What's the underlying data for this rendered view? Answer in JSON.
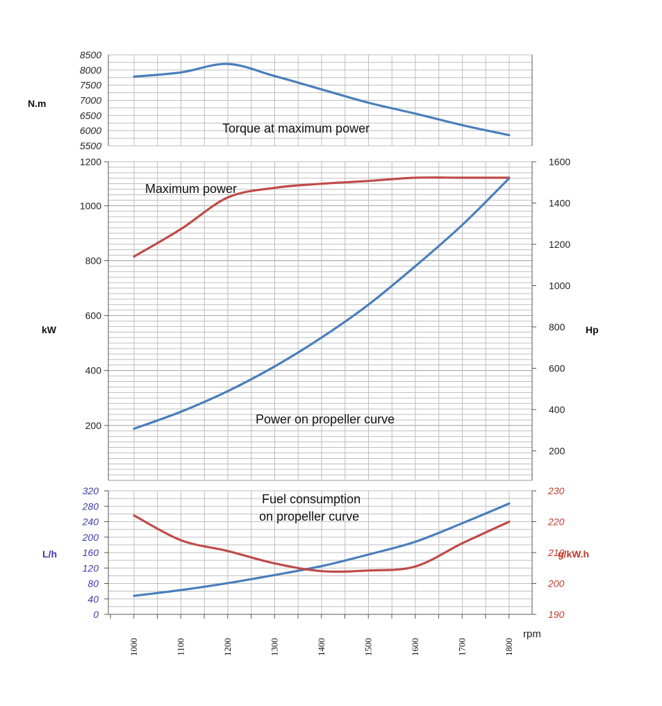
{
  "colors": {
    "blue": "#4a7ebb",
    "red": "#be4b48",
    "fuel_axis": "#3b3ba8",
    "sfc_axis": "#c0392b",
    "grid": "#bdbdbd"
  },
  "chart_data": [
    {
      "type": "line",
      "title": "",
      "x": [
        1000,
        1100,
        1200,
        1300,
        1400,
        1500,
        1600,
        1700,
        1800
      ],
      "ylabel": "N.m",
      "ylim": [
        5500,
        8500
      ],
      "yticks": [
        "8500",
        "8000",
        "7500",
        "7000",
        "6500",
        "6000",
        "5500"
      ],
      "annotation": "Torque at maximum power",
      "series": [
        {
          "values": [
            7780,
            7920,
            8200,
            7800,
            7360,
            6920,
            6560,
            6180,
            5850
          ]
        }
      ]
    },
    {
      "type": "line",
      "x": [
        1000,
        1100,
        1200,
        1300,
        1400,
        1500,
        1600,
        1700,
        1800
      ],
      "ylabel": "kW",
      "ylim": [
        0,
        1200
      ],
      "yticks": [
        "1200",
        "1000",
        "800",
        "600",
        "400",
        "200"
      ],
      "y2label": "Hp",
      "y2ticks": [
        "1600",
        "1400",
        "1200",
        "1000",
        "800",
        "600",
        "400",
        "200"
      ],
      "annotations": [
        "Maximum power",
        "Power on propeller curve"
      ],
      "series": [
        {
          "values": [
            815,
            915,
            1030,
            1065,
            1080,
            1090,
            1102,
            1102,
            1102
          ]
        },
        {
          "values": [
            188,
            250,
            325,
            415,
            520,
            640,
            780,
            930,
            1100
          ]
        }
      ]
    },
    {
      "type": "line",
      "x": [
        1000,
        1100,
        1200,
        1300,
        1400,
        1500,
        1600,
        1700,
        1800
      ],
      "xticks": [
        "1000",
        "1100",
        "1200",
        "1300",
        "1400",
        "1500",
        "1600",
        "1700",
        "1800"
      ],
      "xlabel": "rpm",
      "ylabel": "L/h",
      "ylim": [
        0,
        320
      ],
      "yticks": [
        "320",
        "280",
        "240",
        "200",
        "160",
        "120",
        "80",
        "40",
        "0"
      ],
      "y2label": "g/kW.h",
      "y2lim": [
        190,
        230
      ],
      "y2ticks": [
        "230",
        "220",
        "210",
        "200",
        "190"
      ],
      "annotation_lines": [
        "Fuel consumption",
        "on propeller curve"
      ],
      "series": [
        {
          "axis": "left",
          "values": [
            48,
            63,
            81,
            102,
            125,
            155,
            188,
            236,
            287
          ]
        },
        {
          "axis": "right",
          "values": [
            222,
            214,
            210.5,
            206.5,
            204,
            204.2,
            205.5,
            213,
            220
          ]
        }
      ]
    }
  ]
}
